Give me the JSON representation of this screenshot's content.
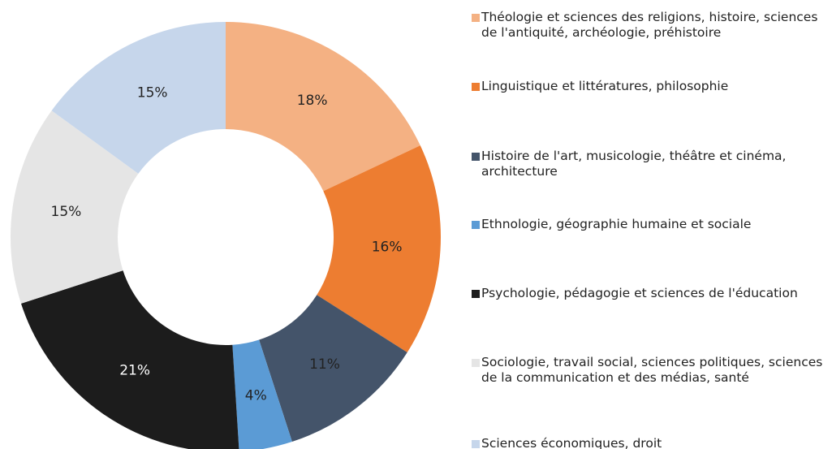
{
  "chart_data": {
    "type": "donut",
    "categories": [
      "Théologie et sciences des religions, histoire, sciences de l'antiquité, archéologie, préhistoire",
      "Linguistique et littératures, philosophie",
      "Histoire de l'art, musicologie, théâtre et cinéma, architecture",
      "Ethnologie, géographie humaine et sociale",
      "Psychologie, pédagogie et sciences de l'éducation",
      "Sociologie, travail social, sciences politiques, sciences de la communication et des médias, santé",
      "Sciences économiques, droit"
    ],
    "values": [
      18,
      16,
      11,
      4,
      21,
      15,
      15
    ],
    "value_labels": [
      "18%",
      "16%",
      "11%",
      "4%",
      "21%",
      "15%",
      "15%"
    ],
    "colors": [
      "#f4b183",
      "#ed7d31",
      "#44546a",
      "#5b9bd5",
      "#1c1c1c",
      "#e5e5e5",
      "#c6d6eb"
    ],
    "legend": "right"
  }
}
